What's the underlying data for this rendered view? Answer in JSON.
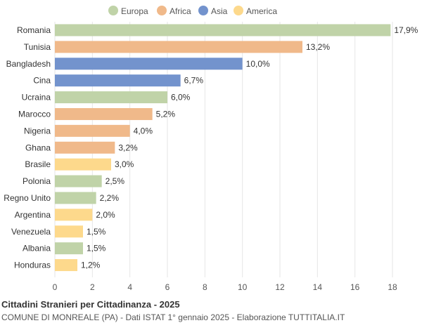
{
  "chart_data": {
    "type": "bar",
    "orientation": "horizontal",
    "categories": [
      "Romania",
      "Tunisia",
      "Bangladesh",
      "Cina",
      "Ucraina",
      "Marocco",
      "Nigeria",
      "Ghana",
      "Brasile",
      "Polonia",
      "Regno Unito",
      "Argentina",
      "Venezuela",
      "Albania",
      "Honduras"
    ],
    "values": [
      17.9,
      13.2,
      10.0,
      6.7,
      6.0,
      5.2,
      4.0,
      3.2,
      3.0,
      2.5,
      2.2,
      2.0,
      1.5,
      1.5,
      1.2
    ],
    "value_labels": [
      "17,9%",
      "13,2%",
      "10,0%",
      "6,7%",
      "6,0%",
      "5,2%",
      "4,0%",
      "3,2%",
      "3,0%",
      "2,5%",
      "2,2%",
      "2,0%",
      "1,5%",
      "1,5%",
      "1,2%"
    ],
    "groups": [
      "Europa",
      "Africa",
      "Asia",
      "Asia",
      "Europa",
      "Africa",
      "Africa",
      "Africa",
      "America",
      "Europa",
      "Europa",
      "America",
      "America",
      "Europa",
      "America"
    ],
    "legend": [
      {
        "name": "Europa",
        "color": "#c0d3a8"
      },
      {
        "name": "Africa",
        "color": "#f0b98a"
      },
      {
        "name": "Asia",
        "color": "#7393cd"
      },
      {
        "name": "America",
        "color": "#fdd98c"
      }
    ],
    "legend_position": "top-center",
    "xlim": [
      0,
      18
    ],
    "xticks": [
      0,
      2,
      4,
      6,
      8,
      10,
      12,
      14,
      16,
      18
    ],
    "grid": true
  },
  "footer": {
    "title": "Cittadini Stranieri per Cittadinanza - 2025",
    "subtitle": "COMUNE DI MONREALE (PA) - Dati ISTAT 1° gennaio 2025 - Elaborazione TUTTITALIA.IT"
  }
}
